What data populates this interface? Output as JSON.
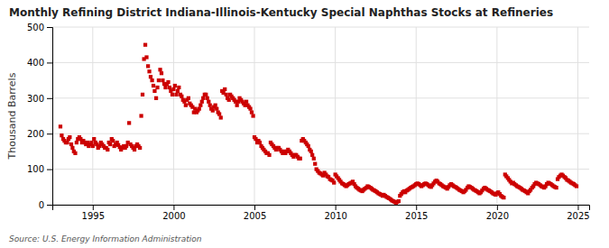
{
  "chart_data": {
    "type": "scatter",
    "title": "Monthly Refining District Indiana-Illinois-Kentucky Special Naphthas Stocks at Refineries",
    "ylabel": "Thousand Barrels",
    "source": "Source: U.S. Energy Information Administration",
    "color": "#CC0000",
    "marker": "square",
    "grid": true,
    "xlim": [
      1992.5,
      2025.7
    ],
    "xticks": [
      1995,
      2000,
      2005,
      2010,
      2015,
      2020,
      2025
    ],
    "ylim": [
      0,
      500
    ],
    "yticks": [
      0,
      100,
      200,
      300,
      400,
      500
    ],
    "x": [
      1993.0,
      1993.08,
      1993.17,
      1993.25,
      1993.33,
      1993.42,
      1993.5,
      1993.58,
      1993.67,
      1993.75,
      1993.83,
      1993.92,
      1994.0,
      1994.08,
      1994.17,
      1994.25,
      1994.33,
      1994.42,
      1994.5,
      1994.58,
      1994.67,
      1994.75,
      1994.83,
      1994.92,
      1995.0,
      1995.08,
      1995.17,
      1995.25,
      1995.33,
      1995.42,
      1995.5,
      1995.58,
      1995.67,
      1995.75,
      1995.83,
      1995.92,
      1996.0,
      1996.08,
      1996.17,
      1996.25,
      1996.33,
      1996.42,
      1996.5,
      1996.58,
      1996.67,
      1996.75,
      1996.83,
      1996.92,
      1997.0,
      1997.08,
      1997.17,
      1997.25,
      1997.33,
      1997.42,
      1997.5,
      1997.58,
      1997.67,
      1997.75,
      1997.83,
      1997.92,
      1998.0,
      1998.08,
      1998.17,
      1998.25,
      1998.33,
      1998.42,
      1998.5,
      1998.58,
      1998.67,
      1998.75,
      1998.83,
      1998.92,
      1999.0,
      1999.08,
      1999.17,
      1999.25,
      1999.33,
      1999.42,
      1999.5,
      1999.58,
      1999.67,
      1999.75,
      1999.83,
      1999.92,
      2000.0,
      2000.08,
      2000.17,
      2000.25,
      2000.33,
      2000.42,
      2000.5,
      2000.58,
      2000.67,
      2000.75,
      2000.83,
      2000.92,
      2001.0,
      2001.08,
      2001.17,
      2001.25,
      2001.33,
      2001.42,
      2001.5,
      2001.58,
      2001.67,
      2001.75,
      2001.83,
      2001.92,
      2002.0,
      2002.08,
      2002.17,
      2002.25,
      2002.33,
      2002.42,
      2002.5,
      2002.58,
      2002.67,
      2002.75,
      2002.83,
      2002.92,
      2003.0,
      2003.08,
      2003.17,
      2003.25,
      2003.33,
      2003.42,
      2003.5,
      2003.58,
      2003.67,
      2003.75,
      2003.83,
      2003.92,
      2004.0,
      2004.08,
      2004.17,
      2004.25,
      2004.33,
      2004.42,
      2004.5,
      2004.58,
      2004.67,
      2004.75,
      2004.83,
      2004.92,
      2005.0,
      2005.08,
      2005.17,
      2005.25,
      2005.33,
      2005.42,
      2005.5,
      2005.58,
      2005.67,
      2005.75,
      2005.83,
      2005.92,
      2006.0,
      2006.08,
      2006.17,
      2006.25,
      2006.33,
      2006.42,
      2006.5,
      2006.58,
      2006.67,
      2006.75,
      2006.83,
      2006.92,
      2007.0,
      2007.08,
      2007.17,
      2007.25,
      2007.33,
      2007.42,
      2007.5,
      2007.58,
      2007.67,
      2007.75,
      2007.83,
      2007.92,
      2008.0,
      2008.08,
      2008.17,
      2008.25,
      2008.33,
      2008.42,
      2008.5,
      2008.58,
      2008.67,
      2008.75,
      2008.83,
      2008.92,
      2009.0,
      2009.08,
      2009.17,
      2009.25,
      2009.33,
      2009.42,
      2009.5,
      2009.58,
      2009.67,
      2009.75,
      2009.83,
      2009.92,
      2010.0,
      2010.08,
      2010.17,
      2010.25,
      2010.33,
      2010.42,
      2010.5,
      2010.58,
      2010.67,
      2010.75,
      2010.83,
      2010.92,
      2011.0,
      2011.08,
      2011.17,
      2011.25,
      2011.33,
      2011.42,
      2011.5,
      2011.58,
      2011.67,
      2011.75,
      2011.83,
      2011.92,
      2012.0,
      2012.08,
      2012.17,
      2012.25,
      2012.33,
      2012.42,
      2012.5,
      2012.58,
      2012.67,
      2012.75,
      2012.83,
      2012.92,
      2013.0,
      2013.08,
      2013.17,
      2013.25,
      2013.33,
      2013.42,
      2013.5,
      2013.58,
      2013.67,
      2013.75,
      2013.83,
      2013.92,
      2014.0,
      2014.08,
      2014.17,
      2014.25,
      2014.33,
      2014.42,
      2014.5,
      2014.58,
      2014.67,
      2014.75,
      2014.83,
      2014.92,
      2015.0,
      2015.08,
      2015.17,
      2015.25,
      2015.33,
      2015.42,
      2015.5,
      2015.58,
      2015.67,
      2015.75,
      2015.83,
      2015.92,
      2016.0,
      2016.08,
      2016.17,
      2016.25,
      2016.33,
      2016.42,
      2016.5,
      2016.58,
      2016.67,
      2016.75,
      2016.83,
      2016.92,
      2017.0,
      2017.08,
      2017.17,
      2017.25,
      2017.33,
      2017.42,
      2017.5,
      2017.58,
      2017.67,
      2017.75,
      2017.83,
      2017.92,
      2018.0,
      2018.08,
      2018.17,
      2018.25,
      2018.33,
      2018.42,
      2018.5,
      2018.58,
      2018.67,
      2018.75,
      2018.83,
      2018.92,
      2019.0,
      2019.08,
      2019.17,
      2019.25,
      2019.33,
      2019.42,
      2019.5,
      2019.58,
      2019.67,
      2019.75,
      2019.83,
      2019.92,
      2020.0,
      2020.08,
      2020.17,
      2020.25,
      2020.33,
      2020.42,
      2020.5,
      2020.58,
      2020.67,
      2020.75,
      2020.83,
      2020.92,
      2021.0,
      2021.08,
      2021.17,
      2021.25,
      2021.33,
      2021.42,
      2021.5,
      2021.58,
      2021.67,
      2021.75,
      2021.83,
      2021.92,
      2022.0,
      2022.08,
      2022.17,
      2022.25,
      2022.33,
      2022.42,
      2022.5,
      2022.58,
      2022.67,
      2022.75,
      2022.83,
      2022.92,
      2023.0,
      2023.08,
      2023.17,
      2023.25,
      2023.33,
      2023.42,
      2023.5,
      2023.58,
      2023.67,
      2023.75,
      2023.83,
      2023.92,
      2024.0,
      2024.08,
      2024.17,
      2024.25,
      2024.33,
      2024.42,
      2024.5,
      2024.58,
      2024.67,
      2024.75,
      2024.83,
      2024.92
    ],
    "values": [
      220,
      195,
      185,
      180,
      175,
      175,
      185,
      190,
      170,
      160,
      150,
      145,
      175,
      185,
      190,
      185,
      175,
      180,
      175,
      170,
      175,
      165,
      170,
      175,
      165,
      185,
      175,
      170,
      160,
      165,
      175,
      170,
      165,
      160,
      160,
      155,
      175,
      170,
      185,
      180,
      165,
      170,
      175,
      168,
      162,
      155,
      160,
      165,
      160,
      165,
      175,
      230,
      170,
      165,
      160,
      155,
      165,
      170,
      165,
      160,
      250,
      310,
      410,
      450,
      415,
      390,
      375,
      360,
      350,
      335,
      320,
      300,
      330,
      350,
      380,
      370,
      350,
      340,
      330,
      340,
      345,
      330,
      320,
      310,
      325,
      335,
      310,
      320,
      330,
      310,
      305,
      295,
      290,
      280,
      295,
      300,
      285,
      280,
      275,
      260,
      270,
      260,
      265,
      270,
      280,
      290,
      300,
      310,
      310,
      300,
      290,
      280,
      270,
      265,
      275,
      280,
      270,
      260,
      255,
      245,
      320,
      315,
      325,
      310,
      300,
      295,
      310,
      305,
      300,
      295,
      290,
      280,
      290,
      300,
      295,
      290,
      285,
      280,
      290,
      280,
      275,
      270,
      260,
      250,
      190,
      185,
      175,
      180,
      175,
      165,
      160,
      155,
      150,
      145,
      145,
      140,
      175,
      170,
      165,
      160,
      155,
      160,
      160,
      155,
      150,
      145,
      150,
      145,
      150,
      155,
      150,
      145,
      140,
      135,
      140,
      140,
      135,
      130,
      130,
      180,
      185,
      180,
      175,
      170,
      165,
      155,
      150,
      140,
      130,
      115,
      100,
      95,
      90,
      88,
      85,
      82,
      90,
      85,
      80,
      78,
      72,
      70,
      68,
      62,
      85,
      80,
      75,
      70,
      65,
      60,
      58,
      55,
      52,
      55,
      58,
      60,
      62,
      65,
      58,
      52,
      48,
      45,
      42,
      40,
      38,
      42,
      45,
      48,
      52,
      50,
      48,
      45,
      42,
      40,
      38,
      35,
      32,
      30,
      28,
      25,
      28,
      25,
      22,
      20,
      18,
      15,
      12,
      10,
      8,
      5,
      8,
      10,
      25,
      30,
      35,
      38,
      35,
      40,
      42,
      45,
      48,
      50,
      52,
      55,
      58,
      60,
      58,
      55,
      52,
      55,
      58,
      60,
      58,
      55,
      52,
      50,
      55,
      60,
      65,
      68,
      65,
      60,
      58,
      55,
      52,
      50,
      48,
      45,
      50,
      55,
      58,
      55,
      52,
      50,
      48,
      45,
      42,
      40,
      38,
      35,
      38,
      42,
      48,
      52,
      50,
      48,
      45,
      42,
      40,
      38,
      35,
      32,
      35,
      40,
      45,
      48,
      45,
      42,
      40,
      38,
      35,
      32,
      30,
      28,
      32,
      35,
      30,
      25,
      22,
      20,
      85,
      80,
      75,
      70,
      65,
      60,
      62,
      58,
      55,
      52,
      50,
      48,
      45,
      42,
      40,
      38,
      35,
      32,
      38,
      42,
      48,
      52,
      58,
      62,
      60,
      58,
      55,
      52,
      50,
      48,
      52,
      58,
      62,
      60,
      58,
      55,
      52,
      50,
      48,
      72,
      78,
      82,
      85,
      82,
      78,
      75,
      70,
      68,
      65,
      62,
      60,
      58,
      55,
      52
    ]
  }
}
